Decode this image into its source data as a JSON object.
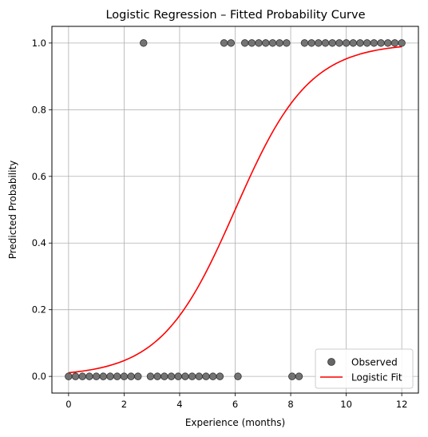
{
  "chart_data": {
    "type": "scatter",
    "title": "Logistic Regression – Fitted Probability Curve",
    "xlabel": "Experience (months)",
    "ylabel": "Predicted Probability",
    "xlim": [
      -0.6,
      12.6
    ],
    "ylim": [
      -0.05,
      1.05
    ],
    "x_ticks": [
      0,
      2,
      4,
      6,
      8,
      10,
      12
    ],
    "y_ticks": [
      0.0,
      0.2,
      0.4,
      0.6,
      0.8,
      1.0
    ],
    "x_tick_labels": [
      "0",
      "2",
      "4",
      "6",
      "8",
      "10",
      "12"
    ],
    "y_tick_labels": [
      "0.0",
      "0.2",
      "0.4",
      "0.6",
      "0.8",
      "1.0"
    ],
    "grid": true,
    "legend_position": "lower-right",
    "series": [
      {
        "name": "Observed",
        "kind": "scatter",
        "color": "#666666",
        "points": [
          [
            0.0,
            0
          ],
          [
            0.25,
            0
          ],
          [
            0.5,
            0
          ],
          [
            0.75,
            0
          ],
          [
            1.0,
            0
          ],
          [
            1.25,
            0
          ],
          [
            1.5,
            0
          ],
          [
            1.75,
            0
          ],
          [
            2.0,
            0
          ],
          [
            2.25,
            0
          ],
          [
            2.5,
            0
          ],
          [
            2.7,
            1
          ],
          [
            2.95,
            0
          ],
          [
            3.2,
            0
          ],
          [
            3.45,
            0
          ],
          [
            3.7,
            0
          ],
          [
            3.95,
            0
          ],
          [
            4.2,
            0
          ],
          [
            4.45,
            0
          ],
          [
            4.7,
            0
          ],
          [
            4.95,
            0
          ],
          [
            5.2,
            0
          ],
          [
            5.45,
            0
          ],
          [
            5.6,
            1
          ],
          [
            5.85,
            1
          ],
          [
            6.1,
            0
          ],
          [
            6.35,
            1
          ],
          [
            6.6,
            1
          ],
          [
            6.85,
            1
          ],
          [
            7.1,
            1
          ],
          [
            7.35,
            1
          ],
          [
            7.6,
            1
          ],
          [
            7.85,
            1
          ],
          [
            8.05,
            0
          ],
          [
            8.3,
            0
          ],
          [
            8.5,
            1
          ],
          [
            8.75,
            1
          ],
          [
            9.0,
            1
          ],
          [
            9.25,
            1
          ],
          [
            9.5,
            1
          ],
          [
            9.75,
            1
          ],
          [
            10.0,
            1
          ],
          [
            10.25,
            1
          ],
          [
            10.5,
            1
          ],
          [
            10.75,
            1
          ],
          [
            11.0,
            1
          ],
          [
            11.25,
            1
          ],
          [
            11.5,
            1
          ],
          [
            11.75,
            1
          ],
          [
            12.0,
            1
          ]
        ]
      },
      {
        "name": "Logistic Fit",
        "kind": "line",
        "color": "#ff0000",
        "points": [
          [
            0.0,
            0.008
          ],
          [
            1.0,
            0.017
          ],
          [
            2.0,
            0.038
          ],
          [
            3.0,
            0.082
          ],
          [
            4.0,
            0.17
          ],
          [
            5.0,
            0.32
          ],
          [
            6.0,
            0.51
          ],
          [
            7.0,
            0.7
          ],
          [
            8.0,
            0.84
          ],
          [
            9.0,
            0.93
          ],
          [
            10.0,
            0.97
          ],
          [
            11.0,
            0.99
          ],
          [
            12.0,
            0.995
          ]
        ]
      }
    ]
  }
}
